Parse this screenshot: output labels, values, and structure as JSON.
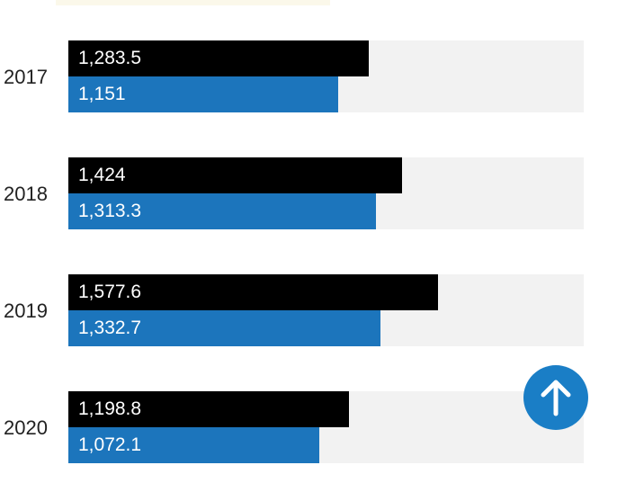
{
  "chart_data": {
    "type": "bar",
    "orientation": "horizontal",
    "categories": [
      "2017",
      "2018",
      "2019",
      "2020"
    ],
    "series": [
      {
        "color": "#000000",
        "values": [
          1283.5,
          1424,
          1577.6,
          1198.8
        ],
        "labels": [
          "1,283.5",
          "1,424",
          "1,577.6",
          "1,198.8"
        ]
      },
      {
        "color": "#1c75bc",
        "values": [
          1151,
          1313.3,
          1332.7,
          1072.1
        ],
        "labels": [
          "1,151",
          "1,313.3",
          "1,332.7",
          "1,072.1"
        ]
      }
    ],
    "xlim": [
      0,
      2200
    ],
    "grid": false,
    "legend": "none"
  },
  "colors": {
    "track": "#f2f2f2",
    "fab": "#1a7ec6",
    "fab_icon": "#ffffff"
  },
  "icons": {
    "fab": "arrow-up-icon"
  }
}
